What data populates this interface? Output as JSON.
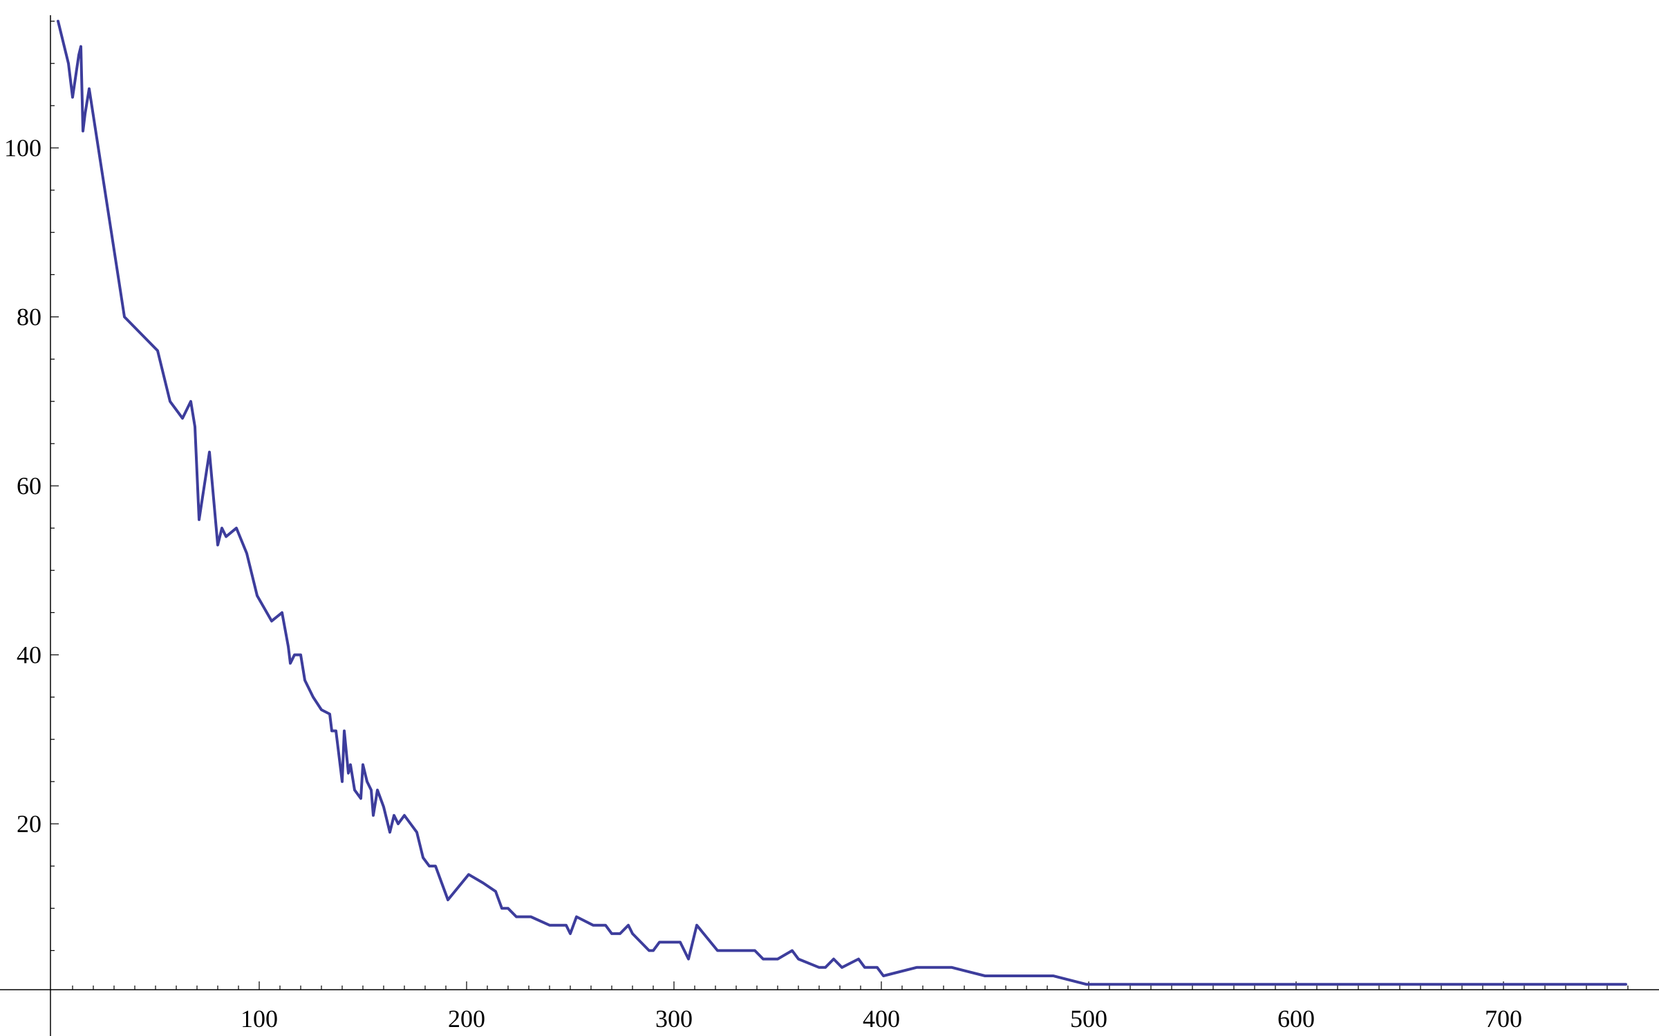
{
  "chart_data": {
    "type": "line",
    "title": "",
    "xlabel": "",
    "ylabel": "",
    "xlim": [
      0,
      760
    ],
    "ylim": [
      0,
      115
    ],
    "x_ticks": [
      100,
      200,
      300,
      400,
      500,
      600,
      700
    ],
    "x_tick_labels": [
      "100",
      "200",
      "300",
      "400",
      "500",
      "600",
      "700"
    ],
    "x_minor_step": 10,
    "y_ticks": [
      20,
      40,
      60,
      80,
      100
    ],
    "y_tick_labels": [
      "20",
      "40",
      "60",
      "80",
      "100"
    ],
    "y_minor_step": 5,
    "grid": false,
    "legend": "none",
    "line_color": "#3d3d9c",
    "series": [
      {
        "x": [
          3,
          8,
          10,
          13,
          14,
          15,
          16,
          18,
          35,
          51,
          57,
          63,
          67,
          69,
          71,
          76,
          80,
          82,
          84,
          89,
          94,
          99,
          106,
          111,
          114,
          115,
          117,
          120,
          122,
          126,
          130,
          134,
          135,
          137,
          140,
          141,
          143,
          144,
          146,
          149,
          150,
          152,
          154,
          155,
          157,
          160,
          163,
          165,
          167,
          170,
          173,
          176,
          179,
          182,
          185,
          191,
          201,
          208,
          214,
          217,
          220,
          224,
          231,
          240,
          248,
          250,
          253,
          261,
          267,
          270,
          274,
          278,
          280,
          288,
          290,
          293,
          296,
          300,
          303,
          307,
          311,
          321,
          339,
          343,
          347,
          350,
          357,
          360,
          370,
          373,
          377,
          381,
          389,
          392,
          395,
          398,
          401,
          417,
          434,
          450,
          467,
          483,
          499,
          582,
          600,
          759
        ],
        "values": [
          115,
          110,
          106,
          111,
          112,
          102,
          104,
          107,
          80,
          76,
          70,
          68,
          70,
          67,
          56,
          64,
          53,
          55,
          54,
          55,
          52,
          47,
          44,
          45,
          41,
          39,
          40,
          40,
          37,
          35,
          33.5,
          33,
          31,
          31,
          25,
          31,
          26,
          27,
          24,
          23,
          27,
          25,
          24,
          21,
          24,
          22,
          19,
          21,
          20,
          21,
          20,
          19,
          16,
          15,
          15,
          11,
          14,
          13,
          12,
          10,
          10,
          9,
          9,
          8,
          8,
          7,
          9,
          8,
          8,
          7,
          7,
          8,
          7,
          5,
          5,
          6,
          6,
          6,
          6,
          4,
          8,
          5,
          5,
          4,
          4,
          4,
          5,
          4,
          3,
          3,
          4,
          3,
          4,
          3,
          3,
          3,
          2,
          3,
          3,
          2,
          2,
          2,
          1,
          1,
          1,
          1
        ]
      }
    ]
  }
}
